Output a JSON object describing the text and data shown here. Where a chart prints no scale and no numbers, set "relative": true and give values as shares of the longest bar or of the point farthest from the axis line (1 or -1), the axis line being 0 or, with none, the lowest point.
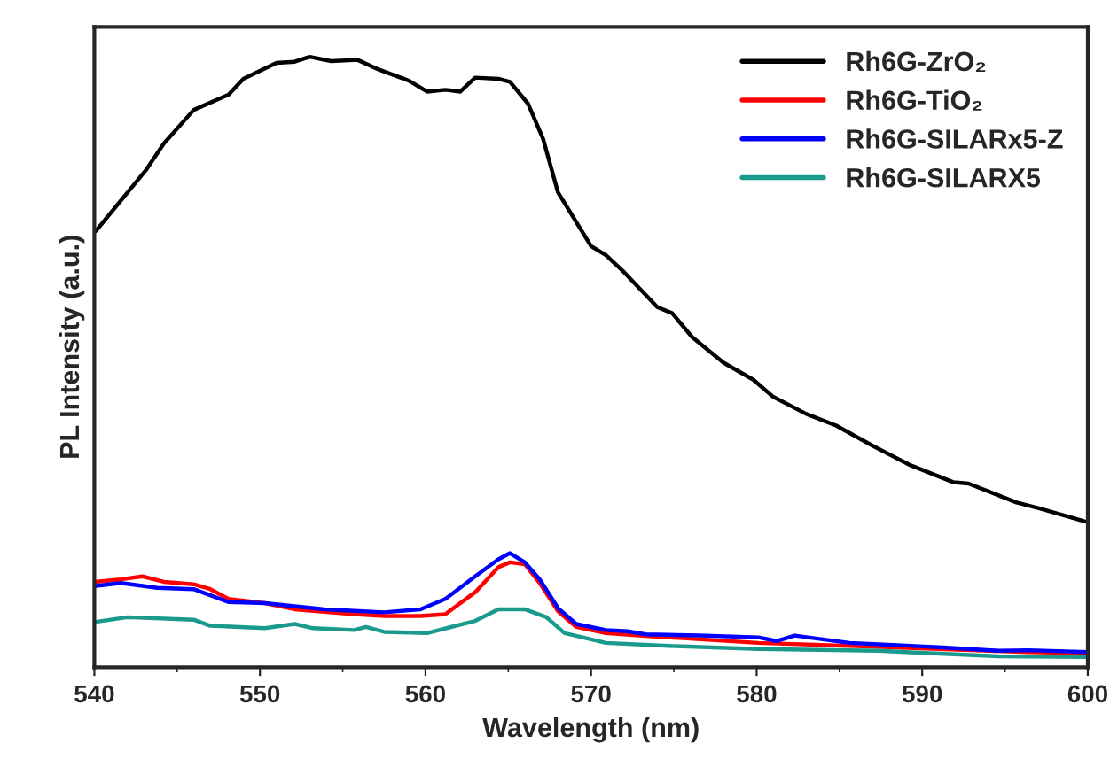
{
  "chart_data": {
    "type": "line",
    "relative": true,
    "xlabel": "Wavelength (nm)",
    "ylabel": "PL Intensity (a.u.)",
    "xlim": [
      540,
      600
    ],
    "xticks": [
      540,
      550,
      560,
      570,
      580,
      590,
      600
    ],
    "tick_labels": "x",
    "grid": false,
    "legend": "top right",
    "marker": "none",
    "line_style": "solid",
    "series": [
      {
        "name": "Rh6G-ZrO₂",
        "color": "#000000",
        "x": [
          540.1,
          543.1,
          544.2,
          546.0,
          548.1,
          549.0,
          551.0,
          552.1,
          553.0,
          554.3,
          555.9,
          557.2,
          559.0,
          560.1,
          561.2,
          562.1,
          563.0,
          564.4,
          565.1,
          566.2,
          567.1,
          568.0,
          570.0,
          570.9,
          572.0,
          574.0,
          574.9,
          576.1,
          578.0,
          579.8,
          581.0,
          583.0,
          584.8,
          587.0,
          589.2,
          591.9,
          592.8,
          595.7,
          597.1,
          599.8
        ],
        "values": [
          0.715,
          0.814,
          0.858,
          0.913,
          0.938,
          0.964,
          0.99,
          0.992,
          1.0,
          0.993,
          0.995,
          0.979,
          0.961,
          0.943,
          0.946,
          0.943,
          0.966,
          0.964,
          0.959,
          0.923,
          0.866,
          0.778,
          0.69,
          0.675,
          0.647,
          0.59,
          0.58,
          0.541,
          0.499,
          0.471,
          0.443,
          0.415,
          0.396,
          0.363,
          0.332,
          0.303,
          0.301,
          0.27,
          0.26,
          0.239
        ]
      },
      {
        "name": "Rh6G-TiO₂",
        "color": "#ff0000",
        "x": [
          540.0,
          541.6,
          542.9,
          544.2,
          546.0,
          547.0,
          548.1,
          550.3,
          552.1,
          555.7,
          557.5,
          559.7,
          561.2,
          563.0,
          564.4,
          565.1,
          566.0,
          566.9,
          568.0,
          569.1,
          570.9,
          572.9,
          580.1,
          585.6,
          591.0,
          596.4,
          600.0
        ],
        "values": [
          0.14,
          0.144,
          0.149,
          0.14,
          0.136,
          0.128,
          0.112,
          0.105,
          0.095,
          0.087,
          0.084,
          0.084,
          0.087,
          0.123,
          0.164,
          0.172,
          0.169,
          0.138,
          0.092,
          0.066,
          0.056,
          0.052,
          0.04,
          0.035,
          0.03,
          0.025,
          0.023
        ]
      },
      {
        "name": "Rh6G-SILARx5-Z",
        "color": "#0000ff",
        "x": [
          540.0,
          541.6,
          543.8,
          546.0,
          548.1,
          550.3,
          553.9,
          557.5,
          559.7,
          561.2,
          563.0,
          564.4,
          565.1,
          566.0,
          566.9,
          568.0,
          569.1,
          570.9,
          572.2,
          573.3,
          576.5,
          580.1,
          581.2,
          582.3,
          585.6,
          591.0,
          594.6,
          596.4,
          600.0
        ],
        "values": [
          0.133,
          0.138,
          0.13,
          0.128,
          0.107,
          0.105,
          0.095,
          0.09,
          0.095,
          0.112,
          0.149,
          0.177,
          0.187,
          0.172,
          0.144,
          0.097,
          0.071,
          0.061,
          0.059,
          0.054,
          0.052,
          0.049,
          0.043,
          0.052,
          0.04,
          0.033,
          0.027,
          0.028,
          0.025
        ]
      },
      {
        "name": "Rh6G-SILARX5",
        "color": "#1a9a8c",
        "x": [
          540.0,
          542.0,
          546.0,
          547.0,
          550.3,
          552.1,
          553.2,
          555.7,
          556.4,
          557.5,
          560.1,
          563.0,
          564.4,
          566.0,
          567.3,
          568.4,
          570.9,
          574.7,
          580.1,
          587.4,
          594.6,
          600.0
        ],
        "values": [
          0.074,
          0.082,
          0.078,
          0.068,
          0.064,
          0.071,
          0.064,
          0.061,
          0.066,
          0.058,
          0.056,
          0.076,
          0.095,
          0.095,
          0.082,
          0.056,
          0.04,
          0.035,
          0.03,
          0.027,
          0.018,
          0.017
        ]
      }
    ]
  }
}
